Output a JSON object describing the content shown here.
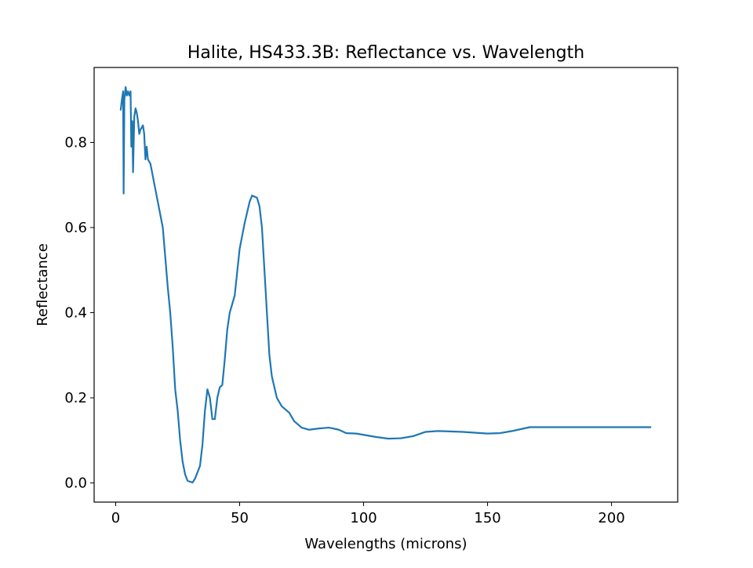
{
  "chart_data": {
    "type": "line",
    "title": "Halite, HS433.3B: Reflectance vs. Wavelength",
    "xlabel": "Wavelengths (microns)",
    "ylabel": "Reflectance",
    "color": "#1f77b4",
    "x": [
      2,
      2.5,
      3,
      3.2,
      3.5,
      4,
      4.5,
      5,
      5.5,
      6,
      6.3,
      6.7,
      7,
      7.5,
      8,
      8.5,
      9,
      9.5,
      10,
      11,
      11.5,
      12,
      12.5,
      13,
      14,
      15,
      16,
      17,
      18,
      19,
      20,
      21,
      22,
      23,
      24,
      25,
      26,
      27,
      28,
      29,
      31,
      32,
      33,
      34,
      35,
      36,
      37,
      38,
      39,
      40,
      41,
      42,
      43,
      44,
      45,
      46,
      48,
      50,
      52,
      54,
      55,
      57,
      58,
      59,
      60,
      61,
      62,
      63,
      65,
      67,
      70,
      72,
      75,
      78,
      82,
      86,
      90,
      93,
      97,
      100,
      105,
      110,
      115,
      120,
      125,
      130,
      140,
      150,
      155,
      160,
      167,
      180,
      200,
      216
    ],
    "values": [
      0.875,
      0.9,
      0.92,
      0.68,
      0.9,
      0.93,
      0.91,
      0.92,
      0.91,
      0.92,
      0.79,
      0.85,
      0.73,
      0.86,
      0.88,
      0.87,
      0.85,
      0.82,
      0.83,
      0.84,
      0.82,
      0.76,
      0.79,
      0.76,
      0.75,
      0.72,
      0.69,
      0.66,
      0.63,
      0.6,
      0.53,
      0.46,
      0.4,
      0.32,
      0.22,
      0.17,
      0.1,
      0.05,
      0.02,
      0.005,
      0.001,
      0.01,
      0.025,
      0.04,
      0.09,
      0.17,
      0.22,
      0.2,
      0.15,
      0.15,
      0.2,
      0.225,
      0.23,
      0.29,
      0.36,
      0.4,
      0.44,
      0.55,
      0.61,
      0.66,
      0.675,
      0.67,
      0.65,
      0.6,
      0.5,
      0.4,
      0.3,
      0.25,
      0.2,
      0.18,
      0.165,
      0.145,
      0.13,
      0.125,
      0.128,
      0.13,
      0.125,
      0.117,
      0.116,
      0.113,
      0.108,
      0.104,
      0.105,
      0.11,
      0.12,
      0.122,
      0.12,
      0.116,
      0.117,
      0.122,
      0.131,
      0.131,
      0.131,
      0.131
    ],
    "xlim": [
      -8.7,
      226.7
    ],
    "ylim": [
      -0.045,
      0.976
    ],
    "xticks": [
      0,
      50,
      100,
      150,
      200
    ],
    "yticks": [
      {
        "value": 0,
        "label": "0.0"
      },
      {
        "value": 0.2,
        "label": "0.2"
      },
      {
        "value": 0.4,
        "label": "0.4"
      },
      {
        "value": 0.6,
        "label": "0.6"
      },
      {
        "value": 0.8,
        "label": "0.8"
      }
    ]
  }
}
